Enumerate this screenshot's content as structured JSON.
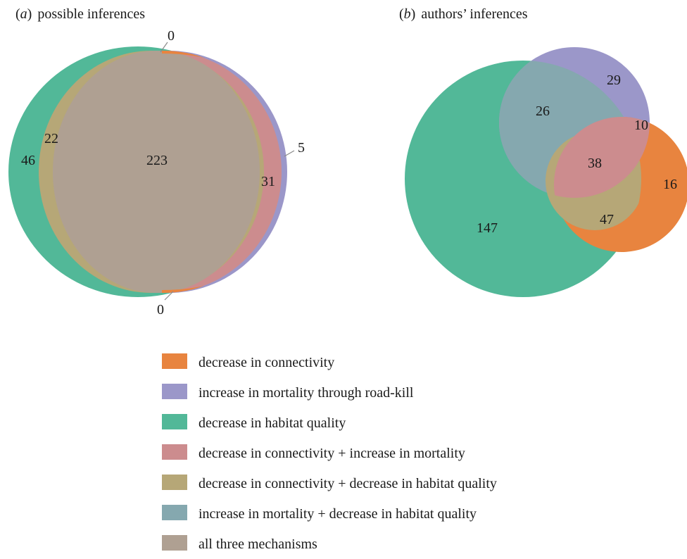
{
  "colors": {
    "connectivity": "#E8843F",
    "mortality": "#9B97C9",
    "habitat": "#52B898",
    "connectivity_mortality": "#CC8C8E",
    "connectivity_habitat": "#B6A777",
    "mortality_habitat": "#85A8AF",
    "all_three": "#AFA092"
  },
  "panel_a": {
    "letter": "a",
    "title": "possible inferences",
    "labels": {
      "habitat_only": "46",
      "connectivity_habitat": "22",
      "all_three": "223",
      "connectivity_mortality": "31",
      "mortality_only": "5",
      "connectivity_only_top": "0",
      "connectivity_only_bottom": "0"
    }
  },
  "panel_b": {
    "letter": "b",
    "title": "authors’ inferences",
    "labels": {
      "habitat_only": "147",
      "mortality_habitat": "26",
      "mortality_only": "29",
      "connectivity_mortality": "10",
      "all_three": "38",
      "connectivity_only": "16",
      "connectivity_habitat": "47"
    }
  },
  "legend": [
    {
      "label": "decrease in connectivity",
      "color": "#E8843F"
    },
    {
      "label": "increase in mortality through road-kill",
      "color": "#9B97C9"
    },
    {
      "label": "decrease in habitat quality",
      "color": "#52B898"
    },
    {
      "label": "decrease in connectivity + increase in mortality",
      "color": "#CC8C8E"
    },
    {
      "label": "decrease in connectivity + decrease in habitat quality",
      "color": "#B6A777"
    },
    {
      "label": "increase in mortality + decrease in habitat quality",
      "color": "#85A8AF"
    },
    {
      "label": "all three mechanisms",
      "color": "#AFA092"
    }
  ]
}
